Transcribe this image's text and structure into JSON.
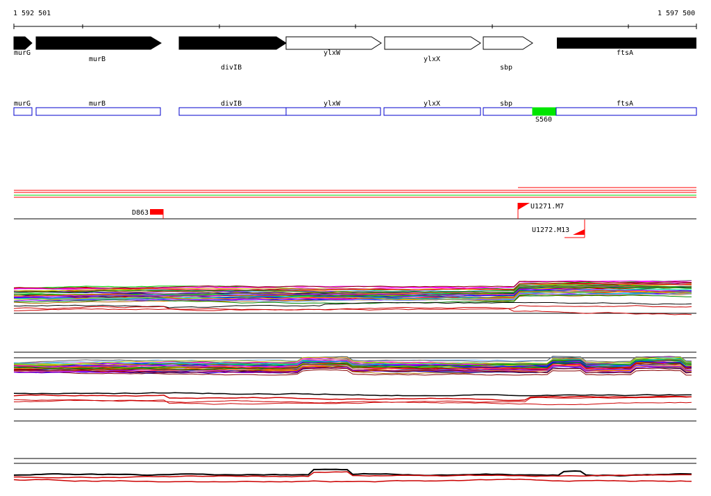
{
  "coordinates": {
    "start_label": "1 592 501",
    "end_label": "1 597 500"
  },
  "genes": [
    {
      "name": "murG",
      "strand": "plus",
      "filled": true
    },
    {
      "name": "murB",
      "strand": "plus",
      "filled": true
    },
    {
      "name": "divIB",
      "strand": "plus",
      "filled": true
    },
    {
      "name": "ylxW",
      "strand": "plus",
      "filled": false
    },
    {
      "name": "ylxX",
      "strand": "plus",
      "filled": false
    },
    {
      "name": "sbp",
      "strand": "plus",
      "filled": false
    },
    {
      "name": "ftsA",
      "strand": "plus",
      "filled": true
    }
  ],
  "regions": [
    {
      "name": "murG"
    },
    {
      "name": "murB"
    },
    {
      "name": "divIB"
    },
    {
      "name": "ylxW"
    },
    {
      "name": "ylxX"
    },
    {
      "name": "sbp"
    },
    {
      "name": "ftsA"
    }
  ],
  "highlight_region": {
    "name": "S560",
    "color": "#00e600"
  },
  "features": [
    {
      "name": "D863"
    },
    {
      "name": "U1271.M7"
    },
    {
      "name": "U1272.M13"
    }
  ],
  "colors": {
    "outline_blue": "#0000cc",
    "feature_red": "#ff0000",
    "green": "#00cc00",
    "track_line": "#000000"
  }
}
